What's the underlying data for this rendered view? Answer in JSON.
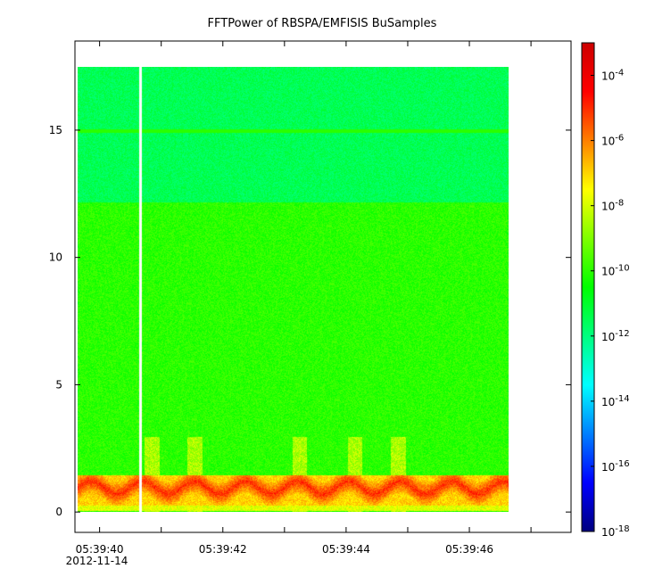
{
  "chart_data": {
    "type": "heatmap",
    "title": "FFTPower of RBSPA/EMFISIS  BuSamples",
    "x_date": "2012-11-14",
    "x": {
      "start": "05:39:39.65",
      "end": "05:39:46.65",
      "axis_range": [
        "05:39:39.60",
        "05:39:47.65"
      ],
      "ticks": [
        "05:39:40",
        "05:39:42",
        "05:39:44",
        "05:39:46"
      ],
      "minor_ticks": [
        "05:39:41",
        "05:39:43",
        "05:39:45",
        "05:39:47"
      ],
      "gap": "05:39:40.65"
    },
    "y": {
      "range": [
        -0.8,
        18.5
      ],
      "data_range": [
        0,
        17.5
      ],
      "ticks": [
        0,
        5,
        10,
        15
      ]
    },
    "colorbar": {
      "scale": "log",
      "range": [
        1e-18,
        0.001
      ],
      "colormap": [
        "#00007f",
        "#0000ff",
        "#007fff",
        "#00ffff",
        "#00ff7f",
        "#00ff00",
        "#7fff00",
        "#ffff00",
        "#ff7f00",
        "#ff0000",
        "#cc0000"
      ],
      "tick_bases": [
        "10",
        "10",
        "10",
        "10",
        "10",
        "10",
        "10",
        "10"
      ],
      "tick_exponents": [
        "-18",
        "-16",
        "-14",
        "-12",
        "-10",
        "-8",
        "-6",
        "-4"
      ],
      "tick_values": [
        -18,
        -16,
        -14,
        -12,
        -10,
        -8,
        -6,
        -4
      ]
    },
    "features": {
      "background_level": [
        -10.5,
        -9.5
      ],
      "upper_band_level": [
        -12,
        -11
      ],
      "upper_band_boundary": 12.2,
      "line_at": 15,
      "low_frequency_band": [
        0.6,
        1.5
      ],
      "low_frequency_level": [
        -7,
        -5
      ]
    }
  }
}
